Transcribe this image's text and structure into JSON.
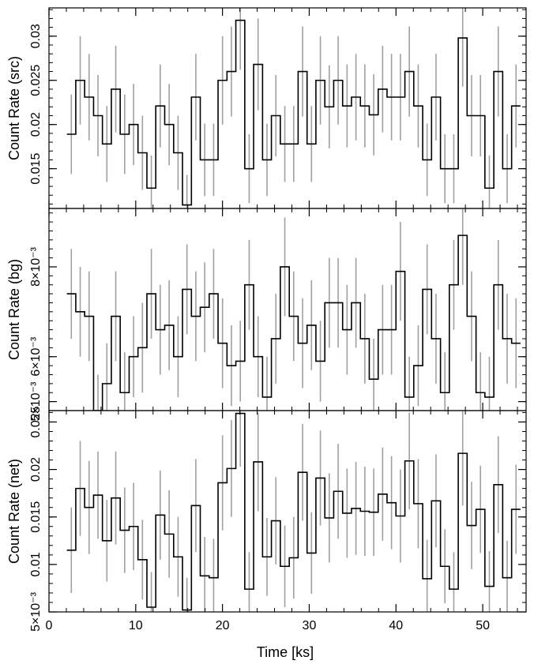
{
  "chart_data": [
    {
      "type": "line",
      "panel": "src",
      "ylabel": "Count Rate (src)",
      "xlabel": "",
      "xlim": [
        0,
        55
      ],
      "ylim": [
        0.0105,
        0.0332
      ],
      "y_ticks": [
        {
          "value": 0.015,
          "label": "0.015"
        },
        {
          "value": 0.02,
          "label": "0.02"
        },
        {
          "value": 0.025,
          "label": "0.025"
        },
        {
          "value": 0.03,
          "label": "0.03"
        }
      ],
      "y_minor_step": 0.001,
      "bin_edges": [
        2.06,
        3.09,
        4.11,
        5.14,
        6.16,
        7.19,
        8.21,
        9.24,
        10.26,
        11.29,
        12.31,
        13.34,
        14.37,
        15.39,
        16.42,
        17.44,
        18.47,
        19.49,
        20.52,
        21.54,
        22.57,
        23.59,
        24.62,
        25.64,
        26.67,
        27.7,
        28.72,
        29.75,
        30.77,
        31.8,
        32.82,
        33.85,
        34.87,
        35.9,
        36.92,
        37.95,
        38.97,
        40.0,
        41.03,
        42.05,
        43.08,
        44.1,
        45.13,
        46.15,
        47.18,
        48.2,
        49.23,
        50.25,
        51.28,
        52.3,
        53.33,
        54.35
      ],
      "values": [
        0.0189,
        0.025,
        0.0231,
        0.021,
        0.0178,
        0.024,
        0.0189,
        0.02,
        0.0168,
        0.0128,
        0.0221,
        0.02,
        0.0168,
        0.0109,
        0.0231,
        0.016,
        0.016,
        0.025,
        0.026,
        0.0318,
        0.015,
        0.0268,
        0.016,
        0.021,
        0.0178,
        0.0178,
        0.026,
        0.0178,
        0.025,
        0.022,
        0.025,
        0.0221,
        0.0231,
        0.0221,
        0.0211,
        0.024,
        0.0231,
        0.0231,
        0.026,
        0.0221,
        0.016,
        0.0231,
        0.015,
        0.015,
        0.0298,
        0.021,
        0.021,
        0.0128,
        0.026,
        0.015,
        0.0221
      ],
      "errors": [
        0.0045,
        0.005,
        0.0049,
        0.0046,
        0.0043,
        0.0049,
        0.0045,
        0.0046,
        0.0042,
        0.0037,
        0.0047,
        0.0046,
        0.0042,
        0.0034,
        0.0049,
        0.0041,
        0.0041,
        0.005,
        0.0051,
        0.0056,
        0.0039,
        0.0052,
        0.0041,
        0.0046,
        0.0043,
        0.0043,
        0.0051,
        0.0043,
        0.005,
        0.0047,
        0.005,
        0.0047,
        0.0049,
        0.0047,
        0.0046,
        0.0049,
        0.0049,
        0.0049,
        0.0051,
        0.0047,
        0.0041,
        0.0049,
        0.0039,
        0.0039,
        0.0055,
        0.0046,
        0.0046,
        0.0037,
        0.0051,
        0.0039,
        0.0047
      ]
    },
    {
      "type": "line",
      "panel": "bg",
      "ylabel": "Count Rate (bg)",
      "xlabel": "",
      "xlim": [
        0,
        55
      ],
      "ylim": [
        0.0048,
        0.0093
      ],
      "y_ticks": [
        {
          "value": 0.005,
          "label": "5×10⁻³"
        },
        {
          "value": 0.006,
          "label": "6×10⁻³"
        },
        {
          "value": 0.008,
          "label": "8×10⁻³"
        }
      ],
      "y_minor_step": 0.0002,
      "bin_edges": [
        2.06,
        3.09,
        4.11,
        5.14,
        6.16,
        7.19,
        8.21,
        9.24,
        10.26,
        11.29,
        12.31,
        13.34,
        14.37,
        15.39,
        16.42,
        17.44,
        18.47,
        19.49,
        20.52,
        21.54,
        22.57,
        23.59,
        24.62,
        25.64,
        26.67,
        27.7,
        28.72,
        29.75,
        30.77,
        31.8,
        32.82,
        33.85,
        34.87,
        35.9,
        36.92,
        37.95,
        38.97,
        40.0,
        41.03,
        42.05,
        43.08,
        44.1,
        45.13,
        46.15,
        47.18,
        48.2,
        49.23,
        50.25,
        51.28,
        52.3,
        53.33,
        54.35
      ],
      "values": [
        0.0074,
        0.007,
        0.0069,
        0.0048,
        0.0054,
        0.0069,
        0.0052,
        0.006,
        0.0062,
        0.0074,
        0.0066,
        0.0067,
        0.006,
        0.0075,
        0.0069,
        0.0071,
        0.0074,
        0.0063,
        0.0058,
        0.0059,
        0.0076,
        0.006,
        0.0051,
        0.0064,
        0.008,
        0.0069,
        0.0063,
        0.0067,
        0.0059,
        0.0072,
        0.0072,
        0.0066,
        0.0072,
        0.0064,
        0.0055,
        0.0066,
        0.0066,
        0.0079,
        0.0051,
        0.0058,
        0.0075,
        0.0064,
        0.0052,
        0.0076,
        0.0087,
        0.0069,
        0.0052,
        0.0051,
        0.0076,
        0.0064,
        0.0063
      ],
      "errors": [
        0.001,
        0.001,
        0.001,
        0.0008,
        0.0009,
        0.001,
        0.0009,
        0.0009,
        0.001,
        0.001,
        0.001,
        0.001,
        0.0009,
        0.001,
        0.001,
        0.001,
        0.001,
        0.001,
        0.0009,
        0.0009,
        0.001,
        0.0009,
        0.0009,
        0.001,
        0.0011,
        0.001,
        0.001,
        0.001,
        0.0009,
        0.001,
        0.001,
        0.001,
        0.001,
        0.001,
        0.0009,
        0.001,
        0.001,
        0.0011,
        0.0009,
        0.0009,
        0.001,
        0.001,
        0.0009,
        0.001,
        0.0011,
        0.001,
        0.0009,
        0.0009,
        0.001,
        0.001,
        0.001
      ]
    },
    {
      "type": "line",
      "panel": "net",
      "ylabel": "Count Rate (net)",
      "xlabel": "Time [ks]",
      "xlim": [
        0,
        55
      ],
      "ylim": [
        0.005,
        0.0262
      ],
      "y_ticks": [
        {
          "value": 0.005,
          "label": "5×10⁻³"
        },
        {
          "value": 0.01,
          "label": "0.01"
        },
        {
          "value": 0.015,
          "label": "0.015"
        },
        {
          "value": 0.02,
          "label": "0.02"
        },
        {
          "value": 0.025,
          "label": "0.025"
        }
      ],
      "y_minor_step": 0.001,
      "x_ticks": [
        {
          "value": 0,
          "label": "0"
        },
        {
          "value": 10,
          "label": "10"
        },
        {
          "value": 20,
          "label": "20"
        },
        {
          "value": 30,
          "label": "30"
        },
        {
          "value": 40,
          "label": "40"
        },
        {
          "value": 50,
          "label": "50"
        }
      ],
      "x_minor_step": 2,
      "bin_edges": [
        2.06,
        3.09,
        4.11,
        5.14,
        6.16,
        7.19,
        8.21,
        9.24,
        10.26,
        11.29,
        12.31,
        13.34,
        14.37,
        15.39,
        16.42,
        17.44,
        18.47,
        19.49,
        20.52,
        21.54,
        22.57,
        23.59,
        24.62,
        25.64,
        26.67,
        27.7,
        28.72,
        29.75,
        30.77,
        31.8,
        32.82,
        33.85,
        34.87,
        35.9,
        36.92,
        37.95,
        38.97,
        40.0,
        41.03,
        42.05,
        43.08,
        44.1,
        45.13,
        46.15,
        47.18,
        48.2,
        49.23,
        50.25,
        51.28,
        52.3,
        53.33,
        54.35
      ],
      "values": [
        0.0115,
        0.018,
        0.016,
        0.0173,
        0.0125,
        0.017,
        0.0136,
        0.014,
        0.0105,
        0.0055,
        0.0152,
        0.0132,
        0.0108,
        0.0052,
        0.0162,
        0.0088,
        0.0086,
        0.0186,
        0.0201,
        0.0259,
        0.0074,
        0.0208,
        0.0108,
        0.0146,
        0.0098,
        0.0107,
        0.0197,
        0.0112,
        0.0191,
        0.0149,
        0.0177,
        0.0154,
        0.0159,
        0.0156,
        0.0155,
        0.0174,
        0.0165,
        0.0151,
        0.0209,
        0.0164,
        0.0085,
        0.0167,
        0.0098,
        0.0074,
        0.0217,
        0.0141,
        0.0158,
        0.0077,
        0.0184,
        0.0086,
        0.0158
      ],
      "errors": [
        0.0045,
        0.005,
        0.0049,
        0.0046,
        0.0043,
        0.0049,
        0.0045,
        0.0046,
        0.0042,
        0.0037,
        0.0047,
        0.0046,
        0.0042,
        0.0034,
        0.0049,
        0.0041,
        0.0041,
        0.005,
        0.0051,
        0.0056,
        0.0039,
        0.0052,
        0.0041,
        0.0046,
        0.0043,
        0.0043,
        0.0051,
        0.0043,
        0.005,
        0.0047,
        0.005,
        0.0047,
        0.0049,
        0.0047,
        0.0046,
        0.0049,
        0.0049,
        0.0049,
        0.0051,
        0.0047,
        0.0041,
        0.0049,
        0.0039,
        0.0039,
        0.0055,
        0.0046,
        0.0046,
        0.0037,
        0.0051,
        0.0039,
        0.0047
      ]
    }
  ],
  "colors": {
    "line": "#000000",
    "error_bar": "#a0a0a0",
    "frame": "#000000",
    "background": "#ffffff"
  }
}
